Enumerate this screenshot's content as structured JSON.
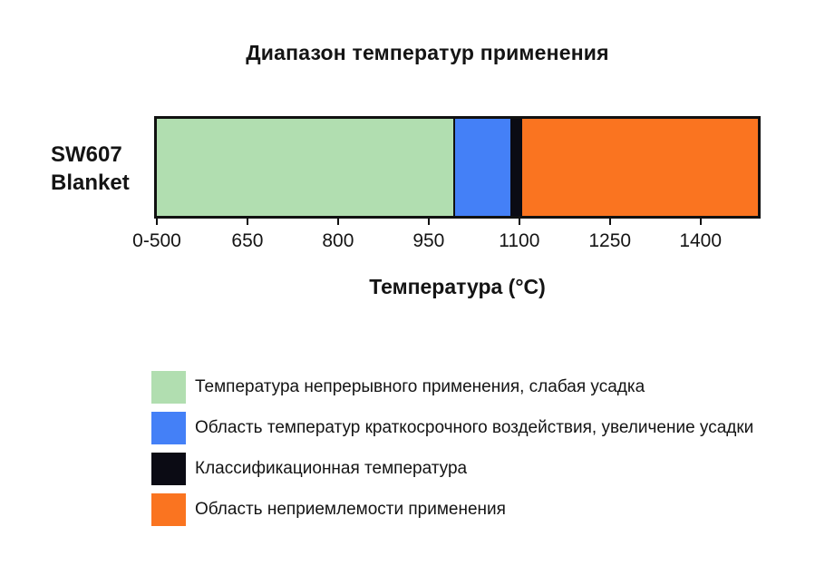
{
  "chart_data": {
    "type": "bar",
    "variant": "horizontal-range-stacked",
    "title": "Диапазон температур применения",
    "xlabel": "Температура (°C)",
    "row_label": {
      "line1": "SW607",
      "line2": "Blanket"
    },
    "axis": {
      "min": 500,
      "max": 1495,
      "unit": "°C",
      "ticks": [
        {
          "label": "0-500",
          "value": 500
        },
        {
          "label": "650",
          "value": 650
        },
        {
          "label": "800",
          "value": 800
        },
        {
          "label": "950",
          "value": 950
        },
        {
          "label": "1100",
          "value": 1100
        },
        {
          "label": "1250",
          "value": 1250
        },
        {
          "label": "1400",
          "value": 1400
        }
      ]
    },
    "segments": [
      {
        "key": "continuous-use",
        "label": "Температура непрерывного применения, слабая усадка",
        "from": 500,
        "to": 990,
        "color": "#b1deb0",
        "divider": false
      },
      {
        "key": "short-term-exposure",
        "label": "Область температур краткосрочного воздействия, увеличение усадки",
        "from": 990,
        "to": 1085,
        "color": "#4480f7",
        "divider": true
      },
      {
        "key": "classification-temperature",
        "label": "Классификационная температура",
        "from": 1085,
        "to": 1105,
        "color": "#0b0b14",
        "divider": false
      },
      {
        "key": "unacceptable-use",
        "label": "Область неприемлемости применения",
        "from": 1105,
        "to": 1495,
        "color": "#fa7420",
        "divider": false
      }
    ],
    "outline_color": "#111111",
    "legend_position": "bottom-left"
  }
}
